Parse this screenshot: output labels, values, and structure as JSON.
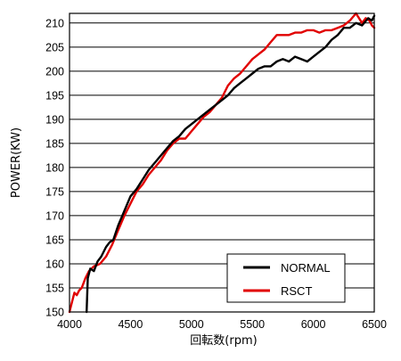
{
  "chart_data": {
    "type": "line",
    "title": "",
    "xlabel": "回転数(rpm)",
    "ylabel": "POWER(KW)",
    "xlim": [
      4000,
      6500
    ],
    "ylim": [
      150,
      212
    ],
    "x_ticks": [
      4000,
      4500,
      5000,
      5500,
      6000,
      6500
    ],
    "x_tick_labels": [
      "4000",
      "4500",
      "5000",
      "5500",
      "6000",
      "6500"
    ],
    "y_ticks": [
      150,
      155,
      160,
      165,
      170,
      175,
      180,
      185,
      190,
      195,
      200,
      205,
      210
    ],
    "y_tick_labels": [
      "150",
      "155",
      "160",
      "165",
      "170",
      "175",
      "180",
      "185",
      "190",
      "195",
      "200",
      "205",
      "210"
    ],
    "grid": "horizontal",
    "legend_position": "bottom-right",
    "series": [
      {
        "name": "NORMAL",
        "color": "#000000",
        "x": [
          4140,
          4150,
          4170,
          4200,
          4230,
          4260,
          4300,
          4330,
          4360,
          4400,
          4450,
          4500,
          4550,
          4600,
          4650,
          4700,
          4750,
          4800,
          4850,
          4900,
          4950,
          5000,
          5050,
          5100,
          5150,
          5200,
          5250,
          5300,
          5350,
          5400,
          5450,
          5500,
          5550,
          5600,
          5650,
          5700,
          5750,
          5800,
          5850,
          5900,
          5950,
          6000,
          6050,
          6100,
          6150,
          6200,
          6250,
          6300,
          6350,
          6400,
          6450,
          6480,
          6500
        ],
        "y": [
          150,
          157,
          159,
          158.5,
          160.5,
          161.5,
          163.5,
          164.5,
          165,
          168,
          171,
          174,
          175.5,
          177.5,
          179.5,
          181,
          182.5,
          184,
          185.5,
          186.5,
          188,
          189,
          190,
          191,
          192,
          193,
          194,
          195,
          196.5,
          197.5,
          198.5,
          199.5,
          200.5,
          201,
          201,
          202,
          202.5,
          202,
          203,
          202.5,
          202,
          203,
          204,
          205,
          206.5,
          207.5,
          209,
          209,
          210,
          209.5,
          211,
          210.5,
          211.5
        ]
      },
      {
        "name": "RSCT",
        "color": "#e10000",
        "x": [
          4000,
          4020,
          4040,
          4060,
          4080,
          4100,
          4130,
          4160,
          4200,
          4250,
          4300,
          4350,
          4400,
          4450,
          4500,
          4550,
          4600,
          4650,
          4700,
          4750,
          4800,
          4850,
          4900,
          4950,
          5000,
          5050,
          5100,
          5150,
          5200,
          5250,
          5300,
          5350,
          5400,
          5450,
          5500,
          5550,
          5600,
          5650,
          5700,
          5750,
          5800,
          5850,
          5900,
          5950,
          6000,
          6050,
          6100,
          6150,
          6200,
          6250,
          6300,
          6350,
          6400,
          6430,
          6460,
          6480,
          6500
        ],
        "y": [
          150,
          152,
          154,
          153.5,
          154.5,
          155,
          157,
          158.5,
          159.5,
          160,
          161.5,
          164,
          167,
          170,
          172.5,
          175,
          176.5,
          178.5,
          180,
          181.5,
          183.5,
          185,
          186,
          186,
          187.5,
          189,
          190.5,
          191.5,
          193,
          194.5,
          197,
          198.5,
          199.5,
          201,
          202.5,
          203.5,
          204.5,
          206,
          207.5,
          207.5,
          207.5,
          208,
          208,
          208.5,
          208.5,
          208,
          208.5,
          208.5,
          209,
          209.5,
          210.5,
          212,
          210,
          211,
          210.5,
          209.5,
          209
        ]
      }
    ]
  }
}
